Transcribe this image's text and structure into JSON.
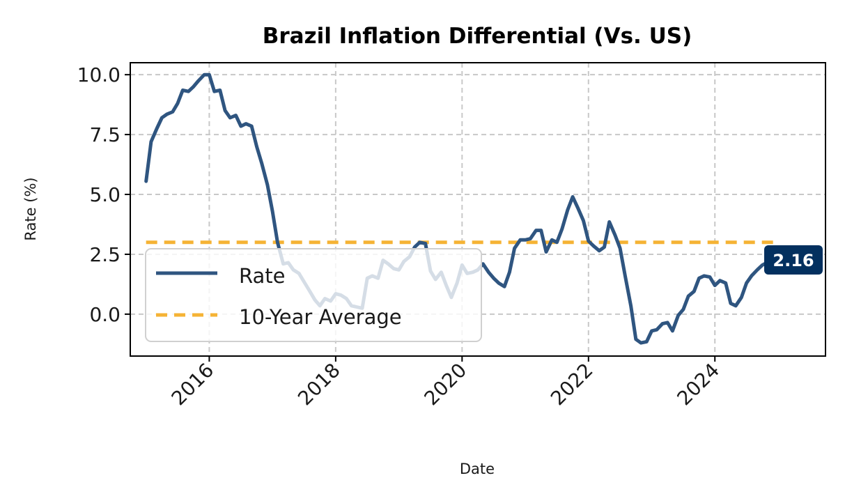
{
  "chart_data": {
    "type": "line",
    "title": "Brazil Inflation Differential (Vs. US)",
    "xlabel": "Date",
    "ylabel": "Rate (%)",
    "xlim": [
      2014.75,
      2025.75
    ],
    "ylim": [
      -1.75,
      10.5
    ],
    "x_ticks": [
      2016,
      2018,
      2020,
      2022,
      2024
    ],
    "x_tick_labels": [
      "2016",
      "2018",
      "2020",
      "2022",
      "2024"
    ],
    "y_ticks": [
      0.0,
      2.5,
      5.0,
      7.5,
      10.0
    ],
    "y_tick_labels": [
      "0.0",
      "2.5",
      "5.0",
      "7.5",
      "10.0"
    ],
    "grid": true,
    "legend_position": "lower-left",
    "series": [
      {
        "name": "Rate",
        "color": "#2f5580",
        "x": [
          2015.0,
          2015.08,
          2015.17,
          2015.25,
          2015.33,
          2015.42,
          2015.5,
          2015.58,
          2015.67,
          2015.75,
          2015.83,
          2015.92,
          2016.0,
          2016.08,
          2016.17,
          2016.25,
          2016.33,
          2016.42,
          2016.5,
          2016.58,
          2016.67,
          2016.75,
          2016.83,
          2016.92,
          2017.0,
          2017.08,
          2017.17,
          2017.25,
          2017.33,
          2017.42,
          2017.5,
          2017.58,
          2017.67,
          2017.75,
          2017.83,
          2017.92,
          2018.0,
          2018.08,
          2018.17,
          2018.25,
          2018.33,
          2018.42,
          2018.5,
          2018.58,
          2018.67,
          2018.75,
          2018.83,
          2018.92,
          2019.0,
          2019.08,
          2019.17,
          2019.25,
          2019.33,
          2019.42,
          2019.5,
          2019.58,
          2019.67,
          2019.75,
          2019.83,
          2019.92,
          2020.0,
          2020.08,
          2020.17,
          2020.25,
          2020.33,
          2020.42,
          2020.5,
          2020.58,
          2020.67,
          2020.75,
          2020.83,
          2020.92,
          2021.0,
          2021.08,
          2021.17,
          2021.25,
          2021.33,
          2021.42,
          2021.5,
          2021.58,
          2021.67,
          2021.75,
          2021.83,
          2021.92,
          2022.0,
          2022.08,
          2022.17,
          2022.25,
          2022.33,
          2022.42,
          2022.5,
          2022.58,
          2022.67,
          2022.75,
          2022.83,
          2022.92,
          2023.0,
          2023.08,
          2023.17,
          2023.25,
          2023.33,
          2023.42,
          2023.5,
          2023.58,
          2023.67,
          2023.75,
          2023.83,
          2023.92,
          2024.0,
          2024.08,
          2024.17,
          2024.25,
          2024.33,
          2024.42,
          2024.5,
          2024.58,
          2024.67,
          2024.75,
          2024.83
        ],
        "y": [
          5.55,
          7.2,
          7.75,
          8.2,
          8.35,
          8.45,
          8.8,
          9.35,
          9.3,
          9.5,
          9.75,
          10.0,
          10.0,
          9.3,
          9.35,
          8.5,
          8.2,
          8.3,
          7.85,
          7.95,
          7.85,
          7.0,
          6.3,
          5.4,
          4.3,
          3.0,
          2.1,
          2.15,
          1.85,
          1.7,
          1.35,
          1.0,
          0.6,
          0.35,
          0.65,
          0.55,
          0.85,
          0.8,
          0.65,
          0.35,
          0.3,
          0.25,
          1.5,
          1.6,
          1.5,
          2.25,
          2.1,
          1.9,
          1.85,
          2.2,
          2.4,
          2.8,
          3.0,
          2.95,
          1.8,
          1.45,
          1.75,
          1.2,
          0.7,
          1.3,
          2.05,
          1.7,
          1.75,
          1.85,
          2.1,
          1.75,
          1.5,
          1.3,
          1.15,
          1.75,
          2.75,
          3.1,
          3.1,
          3.15,
          3.5,
          3.5,
          2.6,
          3.1,
          3.0,
          3.55,
          4.35,
          4.9,
          4.45,
          3.9,
          3.05,
          2.85,
          2.65,
          2.8,
          3.85,
          3.3,
          2.75,
          1.6,
          0.35,
          -1.05,
          -1.2,
          -1.15,
          -0.7,
          -0.65,
          -0.4,
          -0.35,
          -0.7,
          -0.05,
          0.2,
          0.75,
          0.95,
          1.5,
          1.6,
          1.55,
          1.2,
          1.4,
          1.3,
          0.45,
          0.35,
          0.7,
          1.3,
          1.6,
          1.85,
          2.05,
          2.16
        ]
      },
      {
        "name": "10-Year Average",
        "color": "#f5b335",
        "style": "dashed",
        "x": [
          2015.0,
          2024.92
        ],
        "y": [
          3.0,
          3.0
        ]
      }
    ],
    "annotations": [
      {
        "text": "2.16",
        "x": 2024.83,
        "y": 2.16,
        "color": "#03305f"
      }
    ]
  }
}
